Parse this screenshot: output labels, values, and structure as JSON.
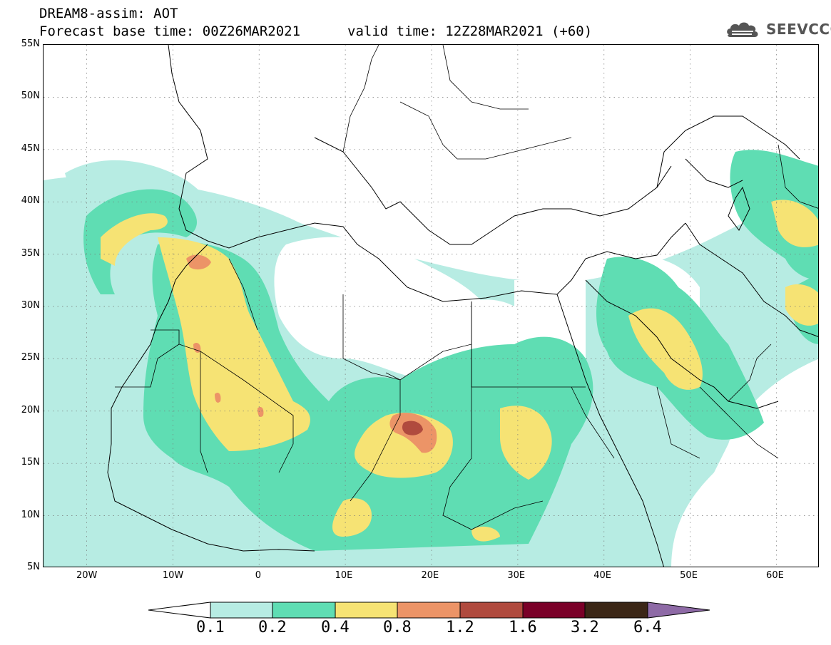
{
  "header": {
    "title": "DREAM8-assim: AOT",
    "base_time": "Forecast base time: 00Z26MAR2021",
    "valid_time": "valid time: 12Z28MAR2021 (+60)"
  },
  "logo": {
    "text": "SEEVCCC",
    "icon": "cloud-icon"
  },
  "map": {
    "lat_labels": [
      "55N",
      "50N",
      "45N",
      "40N",
      "35N",
      "30N",
      "25N",
      "20N",
      "15N",
      "10N",
      "5N"
    ],
    "lon_labels": [
      "20W",
      "10W",
      "0",
      "10E",
      "20E",
      "30E",
      "40E",
      "50E",
      "60E"
    ],
    "lon_range": [
      -25,
      65
    ],
    "lat_range": [
      5,
      55
    ],
    "grid": "dotted"
  },
  "colorbar": {
    "labels": [
      "0.1",
      "0.2",
      "0.4",
      "0.8",
      "1.2",
      "1.6",
      "3.2",
      "6.4"
    ],
    "colors": [
      "#ffffff",
      "#b7ece3",
      "#5fddb3",
      "#f6e374",
      "#ec9467",
      "#b04a3e",
      "#7a0028",
      "#3b2616",
      "#8e6aa6"
    ]
  }
}
